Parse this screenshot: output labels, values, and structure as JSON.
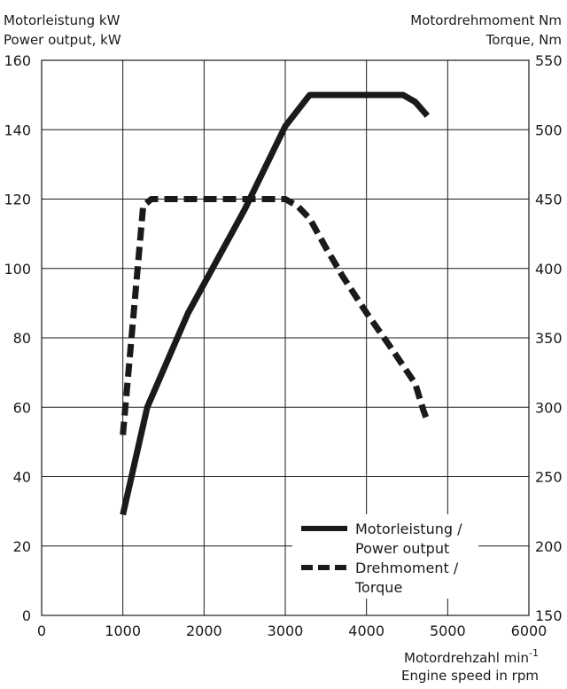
{
  "chart_data": {
    "type": "line",
    "left_axis_title": [
      "Motorleistung kW",
      "Power output, kW"
    ],
    "right_axis_title": [
      "Motordrehmoment Nm",
      "Torque, Nm"
    ],
    "x_axis_title": {
      "line1": "Motordrehzahl min",
      "line1_superscript": "-1",
      "line2": "Engine speed in rpm"
    },
    "x": {
      "min": 0,
      "max": 6000,
      "ticks": [
        0,
        1000,
        2000,
        3000,
        4000,
        5000,
        6000
      ]
    },
    "y_left": {
      "min": 0,
      "max": 160,
      "ticks": [
        0,
        20,
        40,
        60,
        80,
        100,
        120,
        140,
        160
      ]
    },
    "y_right": {
      "min": 150,
      "max": 550,
      "ticks": [
        150,
        200,
        250,
        300,
        350,
        400,
        450,
        500,
        550
      ]
    },
    "grid": true,
    "legend_position": "bottom-right",
    "series": [
      {
        "name": "Motorleistung / Power output",
        "legend_lines": [
          "Motorleistung /",
          "Power output"
        ],
        "axis": "left",
        "style": "solid",
        "color": "#1a1a1a",
        "points": [
          [
            1000,
            29
          ],
          [
            1300,
            60
          ],
          [
            1800,
            87
          ],
          [
            2500,
            117
          ],
          [
            3000,
            141
          ],
          [
            3300,
            150
          ],
          [
            4450,
            150
          ],
          [
            4600,
            148
          ],
          [
            4750,
            144
          ]
        ]
      },
      {
        "name": "Drehmoment / Torque",
        "legend_lines": [
          "Drehmoment /",
          "Torque"
        ],
        "axis": "right",
        "style": "dashed",
        "color": "#1a1a1a",
        "points": [
          [
            1000,
            280
          ],
          [
            1250,
            445
          ],
          [
            1350,
            450
          ],
          [
            3000,
            450
          ],
          [
            3150,
            445
          ],
          [
            3300,
            436
          ],
          [
            3500,
            415
          ],
          [
            3700,
            395
          ],
          [
            4000,
            368
          ],
          [
            4300,
            343
          ],
          [
            4600,
            317
          ],
          [
            4700,
            298
          ],
          [
            4750,
            290
          ]
        ]
      }
    ]
  }
}
